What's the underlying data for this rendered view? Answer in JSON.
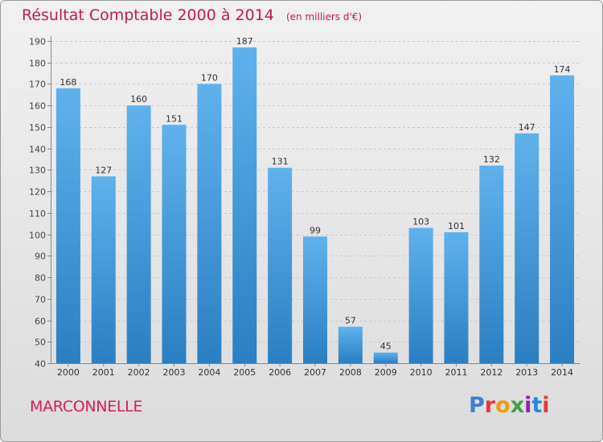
{
  "header": {
    "title": "Résultat Comptable 2000 à 2014",
    "subtitle": "(en milliers d'€)"
  },
  "footer": {
    "commune": "MARCONNELLE",
    "logo_text": "Proxiti"
  },
  "colors": {
    "bar_top": "#5fb2ec",
    "bar_bottom": "#2a7fc2",
    "title": "#c2185b",
    "commune": "#d81b60"
  },
  "chart_data": {
    "type": "bar",
    "title": "Résultat Comptable 2000 à 2014",
    "subtitle": "(en milliers d'€)",
    "categories": [
      "2000",
      "2001",
      "2002",
      "2003",
      "2004",
      "2005",
      "2006",
      "2007",
      "2008",
      "2009",
      "2010",
      "2011",
      "2012",
      "2013",
      "2014"
    ],
    "values": [
      168,
      127,
      160,
      151,
      170,
      187,
      131,
      99,
      57,
      45,
      103,
      101,
      132,
      147,
      174
    ],
    "ylim": [
      40,
      190
    ],
    "yticks": [
      40,
      50,
      60,
      70,
      80,
      90,
      100,
      110,
      120,
      130,
      140,
      150,
      160,
      170,
      180,
      190
    ],
    "grid": true,
    "data_labels": true
  }
}
